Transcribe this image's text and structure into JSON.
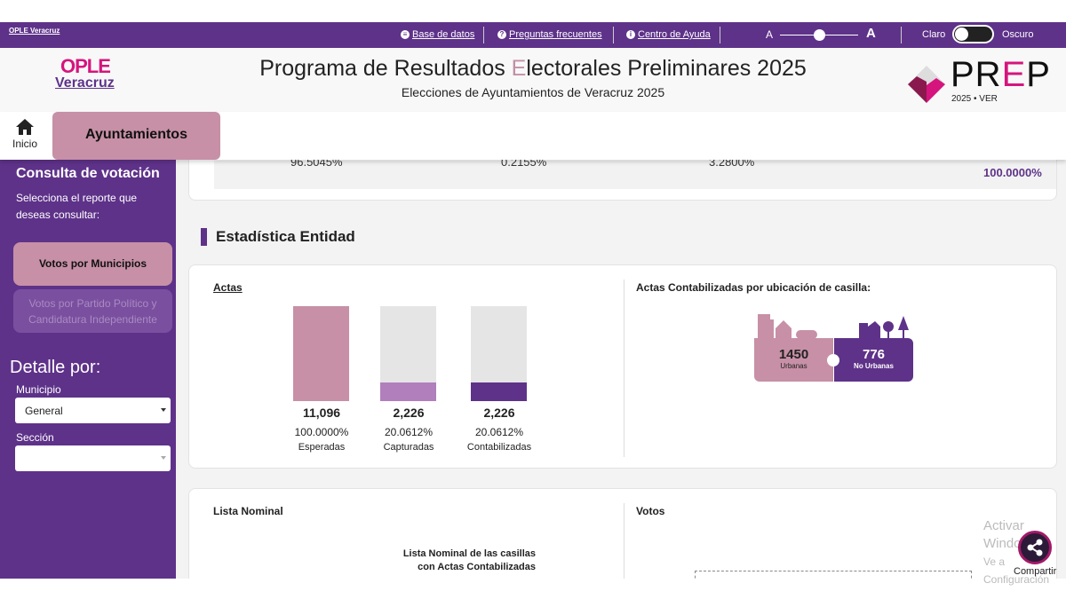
{
  "topbar": {
    "logo": "OPLE Veracruz",
    "links": [
      "Base de datos",
      "Preguntas frecuentes",
      "Centro de Ayuda"
    ],
    "font_small": "A",
    "font_large": "A",
    "font_size_level": 0.5,
    "theme_light": "Claro",
    "theme_dark": "Oscuro",
    "theme_is_dark": false
  },
  "header": {
    "logo_top": "OPLE",
    "logo_bottom": "Veracruz",
    "title_pre": "Programa de Resultados ",
    "title_e": "E",
    "title_post": "lectorales Preliminares 2025",
    "subtitle": "Elecciones de Ayuntamientos de Veracruz 2025",
    "prep_a": "PR",
    "prep_e": "E",
    "prep_b": "P",
    "prep_sub": "2025 • VER"
  },
  "nav": {
    "home": "Inicio",
    "tab": "Ayuntamientos"
  },
  "sidebar": {
    "heading": "Consulta de votación",
    "prompt": "Selecciona el reporte que deseas consultar:",
    "btn_active": "Votos por Municipios",
    "btn_inactive": "Votos por Partido Político y Candidatura Independiente",
    "detail": "Detalle por:",
    "municipio_label": "Municipio",
    "municipio_value": "General",
    "seccion_label": "Sección",
    "seccion_value": ""
  },
  "summary": {
    "percentages": [
      "96.5045%",
      "0.2155%",
      "3.2800%"
    ],
    "total": "100.0000%"
  },
  "estadistica": {
    "title": "Estadística Entidad",
    "actas_title": "Actas",
    "bars": [
      {
        "value": "11,096",
        "pct": "100.0000%",
        "label": "Esperadas",
        "fraction": 1.0,
        "color": "#c790a6"
      },
      {
        "value": "2,226",
        "pct": "20.0612%",
        "label": "Capturadas",
        "fraction": 0.200612,
        "color": "#b07fbc"
      },
      {
        "value": "2,226",
        "pct": "20.0612%",
        "label": "Contabilizadas",
        "fraction": 0.200612,
        "color": "#5e3289"
      }
    ],
    "ubicacion_title": "Actas Contabilizadas por ubicación de casilla:",
    "urbanas": "1450",
    "urbanas_label": "Urbanas",
    "no_urbanas": "776",
    "no_urbanas_label": "No Urbanas"
  },
  "lista": {
    "title": "Lista Nominal",
    "chart_title_1": "Lista Nominal de las casillas",
    "chart_title_2": "con Actas Contabilizadas",
    "votos_title": "Votos"
  },
  "share": {
    "label": "Compartir"
  },
  "watermark": {
    "line1": "Activar Windows",
    "line2": "Ve a Configuración"
  }
}
